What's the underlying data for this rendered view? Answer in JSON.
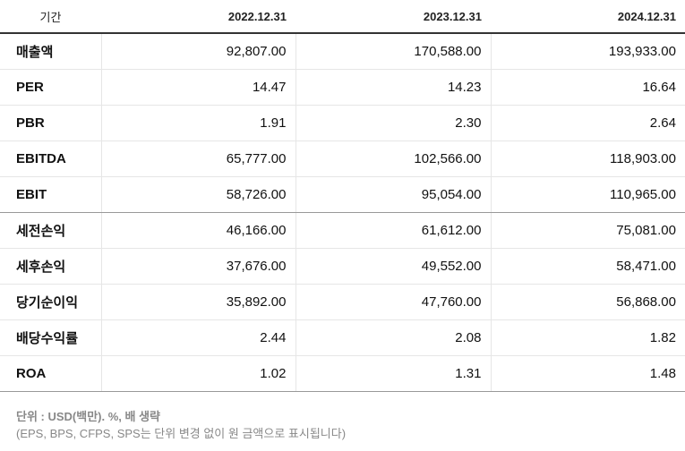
{
  "header": {
    "period_label": "기간",
    "periods": [
      "2022.12.31",
      "2023.12.31",
      "2024.12.31"
    ]
  },
  "rows": [
    {
      "label": "매출액",
      "values": [
        "92,807.00",
        "170,588.00",
        "193,933.00"
      ]
    },
    {
      "label": "PER",
      "values": [
        "14.47",
        "14.23",
        "16.64"
      ]
    },
    {
      "label": "PBR",
      "values": [
        "1.91",
        "2.30",
        "2.64"
      ]
    },
    {
      "label": "EBITDA",
      "values": [
        "65,777.00",
        "102,566.00",
        "118,903.00"
      ]
    },
    {
      "label": "EBIT",
      "values": [
        "58,726.00",
        "95,054.00",
        "110,965.00"
      ]
    },
    {
      "label": "세전손익",
      "values": [
        "46,166.00",
        "61,612.00",
        "75,081.00"
      ]
    },
    {
      "label": "세후손익",
      "values": [
        "37,676.00",
        "49,552.00",
        "58,471.00"
      ]
    },
    {
      "label": "당기순이익",
      "values": [
        "35,892.00",
        "47,760.00",
        "56,868.00"
      ]
    },
    {
      "label": "배당수익률",
      "values": [
        "2.44",
        "2.08",
        "1.82"
      ]
    },
    {
      "label": "ROA",
      "values": [
        "1.02",
        "1.31",
        "1.48"
      ]
    }
  ],
  "footnote": {
    "unit": "단위 : USD(백만). %, 배 생략",
    "note": "(EPS, BPS, CFPS, SPS는 단위 변경 없이 원 금액으로 표시됩니다)"
  }
}
